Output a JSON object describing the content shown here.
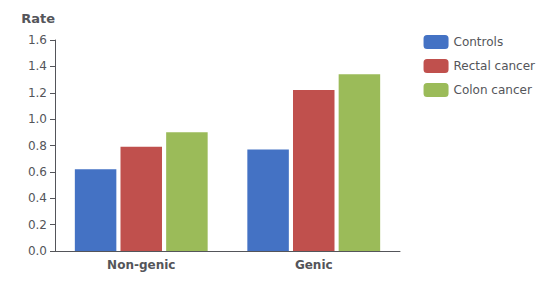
{
  "chart_data": {
    "type": "bar",
    "categories": [
      "Non-genic",
      "Genic"
    ],
    "series": [
      {
        "name": "Controls",
        "color": "#4472C4",
        "values": [
          0.62,
          0.77
        ]
      },
      {
        "name": "Rectal cancer",
        "color": "#C0504D",
        "values": [
          0.79,
          1.22
        ]
      },
      {
        "name": "Colon cancer",
        "color": "#9BBB59",
        "values": [
          0.9,
          1.34
        ]
      }
    ],
    "ylabel": "Rate",
    "ylim": [
      0,
      1.6
    ],
    "yticks": [
      {
        "value": 0,
        "label": "0.0"
      },
      0.2,
      0.4,
      0.6,
      0.8,
      {
        "value": 1.0,
        "label": "1.0"
      },
      1.2,
      1.4,
      1.6
    ],
    "grid": false,
    "legend": "upper right"
  }
}
